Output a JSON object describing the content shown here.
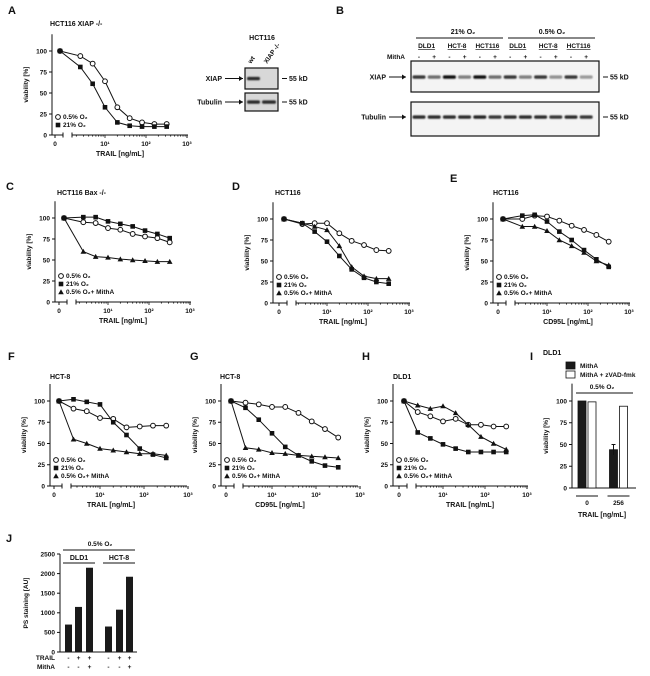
{
  "panel_letters": [
    "A",
    "B",
    "C",
    "D",
    "E",
    "F",
    "G",
    "H",
    "I",
    "J"
  ],
  "blots": {
    "A": {
      "title": "HCT116",
      "lanes": [
        "wt",
        "XIAP -/-"
      ],
      "proteins": [
        "XIAP",
        "Tubulin"
      ],
      "marker": "55 kD",
      "xiap_band_intensity": [
        0.85,
        0.0
      ],
      "tubulin_band_intensity": [
        0.85,
        0.85
      ]
    },
    "B": {
      "groups": [
        "21% O₂",
        "0.5% O₂"
      ],
      "cell_lines": [
        "DLD1",
        "HCT-8",
        "HCT116",
        "DLD1",
        "HCT-8",
        "HCT116"
      ],
      "treatment_label": "MithA",
      "treatment": [
        "-",
        "+",
        "-",
        "+",
        "-",
        "+",
        "-",
        "+",
        "-",
        "+",
        "-",
        "+"
      ],
      "proteins": [
        "XIAP",
        "Tubulin"
      ],
      "marker": "55 kD",
      "xiap_band_intensity": [
        0.8,
        0.5,
        1.0,
        0.4,
        1.0,
        0.5,
        0.8,
        0.4,
        0.8,
        0.3,
        0.8,
        0.25
      ],
      "tubulin_band_intensity": [
        0.85,
        0.85,
        0.85,
        0.85,
        0.9,
        0.8,
        0.85,
        0.85,
        0.85,
        0.8,
        0.85,
        0.8
      ]
    }
  },
  "chart_data": [
    {
      "panel": "A",
      "type": "line",
      "title": "HCT116 XIAP -/-",
      "xlabel": "TRAIL [ng/mL]",
      "ylabel": "viability [%]",
      "xscale": "log",
      "ylim": [
        0,
        120
      ],
      "yticks": [
        "0",
        "25",
        "50",
        "75",
        "100"
      ],
      "xticks": [
        "0",
        "10¹",
        "10²",
        "10³"
      ],
      "x": [
        0,
        2.5,
        5,
        10,
        20,
        40,
        80,
        160,
        320
      ],
      "series": [
        {
          "name": "0.5% O₂",
          "marker": "open-circle",
          "values": [
            100,
            94,
            85,
            64,
            33,
            20,
            15,
            13,
            13
          ]
        },
        {
          "name": "21% O₂",
          "marker": "filled-square",
          "values": [
            100,
            81,
            61,
            33,
            15,
            11,
            10,
            10,
            10
          ]
        }
      ]
    },
    {
      "panel": "C",
      "type": "line",
      "title": "HCT116 Bax -/-",
      "xlabel": "TRAIL [ng/mL]",
      "ylabel": "viability [%]",
      "xscale": "log",
      "ylim": [
        0,
        120
      ],
      "yticks": [
        "0",
        "25",
        "50",
        "75",
        "100"
      ],
      "xticks": [
        "0",
        "10¹",
        "10²",
        "10³"
      ],
      "x": [
        0,
        2.5,
        5,
        10,
        20,
        40,
        80,
        160,
        320
      ],
      "series": [
        {
          "name": "0.5% O₂",
          "marker": "open-circle",
          "values": [
            100,
            95,
            94,
            88,
            86,
            81,
            78,
            76,
            71
          ]
        },
        {
          "name": "21% O₂",
          "marker": "filled-square",
          "values": [
            100,
            101,
            101,
            96,
            93,
            90,
            85,
            81,
            76
          ]
        },
        {
          "name": "0.5% O₂+ MithA",
          "marker": "filled-triangle",
          "values": [
            100,
            60,
            54,
            53,
            51,
            50,
            49,
            48,
            48
          ]
        }
      ]
    },
    {
      "panel": "D",
      "type": "line",
      "title": "HCT116",
      "xlabel": "TRAIL [ng/mL]",
      "ylabel": "viability [%]",
      "xscale": "log",
      "ylim": [
        0,
        120
      ],
      "yticks": [
        "0",
        "25",
        "50",
        "75",
        "100"
      ],
      "xticks": [
        "0",
        "10¹",
        "10²",
        "10³"
      ],
      "x": [
        0,
        2.5,
        5,
        10,
        20,
        40,
        80,
        160,
        320
      ],
      "series": [
        {
          "name": "0.5% O₂",
          "marker": "open-circle",
          "values": [
            100,
            94,
            95,
            95,
            83,
            74,
            69,
            63,
            62
          ]
        },
        {
          "name": "21% O₂",
          "marker": "filled-square",
          "values": [
            100,
            95,
            85,
            73,
            56,
            40,
            30,
            25,
            23
          ]
        },
        {
          "name": "0.5% O₂+ MithA",
          "marker": "filled-triangle",
          "values": [
            100,
            95,
            91,
            87,
            68,
            43,
            32,
            29,
            29
          ]
        }
      ]
    },
    {
      "panel": "E",
      "type": "line",
      "title": "HCT116",
      "xlabel": "CD95L [ng/mL]",
      "ylabel": "viability [%]",
      "xscale": "log",
      "ylim": [
        0,
        120
      ],
      "yticks": [
        "0",
        "25",
        "50",
        "75",
        "100"
      ],
      "xticks": [
        "0",
        "10¹",
        "10²",
        "10³"
      ],
      "x": [
        0,
        2.5,
        5,
        10,
        20,
        40,
        80,
        160,
        320
      ],
      "series": [
        {
          "name": "0.5% O₂",
          "marker": "open-circle",
          "values": [
            100,
            100,
            104,
            103,
            98,
            92,
            87,
            81,
            73
          ]
        },
        {
          "name": "21% O₂",
          "marker": "filled-square",
          "values": [
            100,
            104,
            105,
            97,
            85,
            75,
            63,
            52,
            43
          ]
        },
        {
          "name": "0.5% O₂+ MithA",
          "marker": "filled-triangle",
          "values": [
            100,
            91,
            91,
            86,
            75,
            68,
            60,
            50,
            45
          ]
        }
      ]
    },
    {
      "panel": "F",
      "type": "line",
      "title": "HCT-8",
      "xlabel": "TRAIL [ng/mL]",
      "ylabel": "viability [%]",
      "xscale": "log",
      "ylim": [
        0,
        120
      ],
      "yticks": [
        "0",
        "25",
        "50",
        "75",
        "100"
      ],
      "xticks": [
        "0",
        "10¹",
        "10²",
        "10³"
      ],
      "x": [
        0,
        2.5,
        5,
        10,
        20,
        40,
        80,
        160,
        320
      ],
      "series": [
        {
          "name": "0.5% O₂",
          "marker": "open-circle",
          "values": [
            100,
            91,
            88,
            80,
            79,
            69,
            70,
            71,
            71
          ]
        },
        {
          "name": "21% O₂",
          "marker": "filled-square",
          "values": [
            100,
            102,
            99,
            96,
            75,
            60,
            44,
            37,
            33
          ]
        },
        {
          "name": "0.5% O₂+ MithA",
          "marker": "filled-triangle",
          "values": [
            100,
            55,
            50,
            44,
            42,
            40,
            38,
            38,
            36
          ]
        }
      ]
    },
    {
      "panel": "G",
      "type": "line",
      "title": "HCT-8",
      "xlabel": "CD95L [ng/mL]",
      "ylabel": "viability [%]",
      "xscale": "log",
      "ylim": [
        0,
        120
      ],
      "yticks": [
        "0",
        "25",
        "50",
        "75",
        "100"
      ],
      "xticks": [
        "0",
        "10¹",
        "10²",
        "10³"
      ],
      "x": [
        0,
        2.5,
        5,
        10,
        20,
        40,
        80,
        160,
        320
      ],
      "series": [
        {
          "name": "0.5% O₂",
          "marker": "open-circle",
          "values": [
            100,
            98,
            96,
            93,
            93,
            86,
            76,
            67,
            57
          ]
        },
        {
          "name": "21% O₂",
          "marker": "filled-square",
          "values": [
            100,
            92,
            78,
            62,
            46,
            36,
            29,
            24,
            22
          ]
        },
        {
          "name": "0.5% O₂+ MithA",
          "marker": "filled-triangle",
          "values": [
            100,
            45,
            43,
            39,
            38,
            36,
            35,
            34,
            33
          ]
        }
      ]
    },
    {
      "panel": "H",
      "type": "line",
      "title": "DLD1",
      "xlabel": "TRAIL [ng/mL]",
      "ylabel": "viability [%]",
      "xscale": "log",
      "ylim": [
        0,
        120
      ],
      "yticks": [
        "0",
        "25",
        "50",
        "75",
        "100"
      ],
      "xticks": [
        "0",
        "10¹",
        "10²",
        "10³"
      ],
      "x": [
        0,
        2.5,
        5,
        10,
        20,
        40,
        80,
        160,
        320
      ],
      "series": [
        {
          "name": "0.5% O₂",
          "marker": "open-circle",
          "values": [
            100,
            87,
            82,
            76,
            79,
            72,
            72,
            70,
            70
          ]
        },
        {
          "name": "21% O₂",
          "marker": "filled-square",
          "values": [
            100,
            63,
            56,
            49,
            44,
            40,
            40,
            40,
            40
          ]
        },
        {
          "name": "0.5% O₂+ MithA",
          "marker": "filled-triangle",
          "values": [
            100,
            95,
            91,
            94,
            86,
            72,
            58,
            50,
            43
          ]
        }
      ]
    },
    {
      "panel": "I",
      "type": "bar",
      "title": "DLD1",
      "condition": "0.5% O₂",
      "xlabel": "TRAIL [ng/mL]",
      "ylabel": "viability [%]",
      "ylim": [
        0,
        120
      ],
      "yticks": [
        "0",
        "25",
        "50",
        "75",
        "100"
      ],
      "categories": [
        "0",
        "256"
      ],
      "series": [
        {
          "name": "MithA",
          "color": "#1a1a1a",
          "values": [
            100,
            44
          ],
          "errors": [
            0,
            6
          ]
        },
        {
          "name": "MithA + zVAD-fmk",
          "color": "#ffffff",
          "values": [
            99,
            94
          ],
          "errors": [
            0,
            0
          ]
        }
      ]
    },
    {
      "panel": "J",
      "type": "bar",
      "condition": "0.5% O₂",
      "ylabel": "PS staining [AU]",
      "ylim": [
        0,
        2500
      ],
      "yticks": [
        "0",
        "500",
        "1000",
        "1500",
        "2000",
        "2500"
      ],
      "groups": [
        "DLD1",
        "HCT-8"
      ],
      "row_labels": [
        "TRAIL",
        "MithA"
      ],
      "trail": [
        "-",
        "+",
        "+",
        "-",
        "+",
        "+"
      ],
      "mitha": [
        "-",
        "-",
        "+",
        "-",
        "-",
        "+"
      ],
      "values": [
        700,
        1150,
        2150,
        650,
        1080,
        1920
      ],
      "color": "#1a1a1a"
    }
  ]
}
